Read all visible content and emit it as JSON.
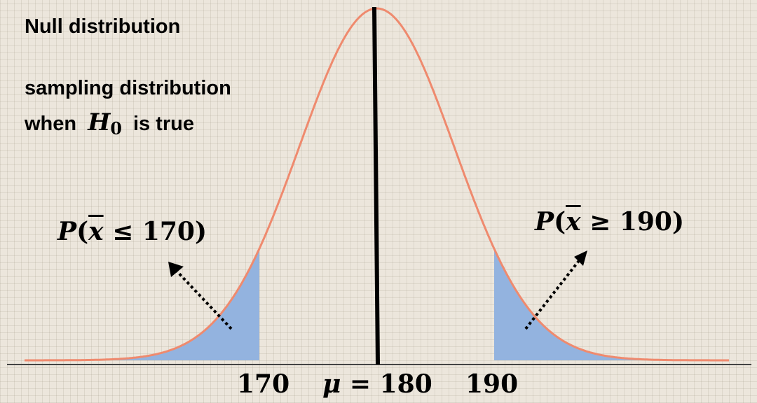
{
  "title": "Null distribution",
  "subtitle_line1": "sampling distribution",
  "subtitle_line2_prefix": "when",
  "subtitle_h_letter": "H",
  "subtitle_h_sub": "0",
  "subtitle_line2_suffix": "is true",
  "left_prob": {
    "p": "P",
    "open": "(",
    "xbar": "x",
    "rel": " ≤ ",
    "value": "170",
    "close": ")"
  },
  "right_prob": {
    "p": "P",
    "open": "(",
    "xbar": "x",
    "rel": " ≥ ",
    "value": "190",
    "close": ")"
  },
  "axis_labels": {
    "left": "170",
    "mu": "μ",
    "mu_eq": " = 180",
    "right": "190"
  },
  "distribution": {
    "mean": 180,
    "sd": 6.6,
    "x_min": 150,
    "x_max": 210,
    "lower_cut": 170,
    "upper_cut": 190
  },
  "colors": {
    "curve": "#ef8a6e",
    "tail_fill": "#93b3df",
    "mean_line": "#000000",
    "axis": "#444444",
    "arrows": "#000000"
  }
}
